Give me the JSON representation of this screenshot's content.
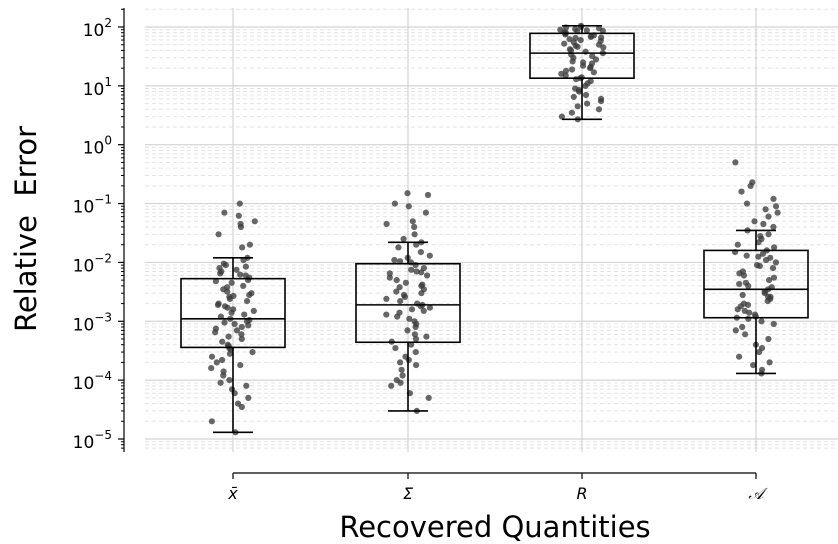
{
  "chart_data": {
    "type": "box",
    "xlabel": "Recovered Quantities",
    "ylabel": "Relative  Error",
    "yscale": "log",
    "ylim": [
      6e-06,
      200
    ],
    "grid": true,
    "categories": [
      "x̄",
      "Σ",
      "R",
      "𝒜"
    ],
    "y_ticks": [
      {
        "base": "10",
        "exp": "−5",
        "value": 1e-05
      },
      {
        "base": "10",
        "exp": "−4",
        "value": 0.0001
      },
      {
        "base": "10",
        "exp": "−3",
        "value": 0.001
      },
      {
        "base": "10",
        "exp": "−2",
        "value": 0.01
      },
      {
        "base": "10",
        "exp": "−1",
        "value": 0.1
      },
      {
        "base": "10",
        "exp": "0",
        "value": 1
      },
      {
        "base": "10",
        "exp": "1",
        "value": 10
      },
      {
        "base": "10",
        "exp": "2",
        "value": 100
      }
    ],
    "boxes": [
      {
        "category": "x̄",
        "whisker_low": 1.3e-05,
        "q1": 0.00036,
        "median": 0.0011,
        "q3": 0.0053,
        "whisker_high": 0.012
      },
      {
        "category": "Σ",
        "whisker_low": 3e-05,
        "q1": 0.00044,
        "median": 0.0019,
        "q3": 0.0095,
        "whisker_high": 0.022
      },
      {
        "category": "R",
        "whisker_low": 2.7,
        "q1": 13.5,
        "median": 36,
        "q3": 78,
        "whisker_high": 105
      },
      {
        "category": "𝒜",
        "whisker_low": 0.00013,
        "q1": 0.00115,
        "median": 0.0035,
        "q3": 0.016,
        "whisker_high": 0.035
      }
    ],
    "points": [
      {
        "category": "x̄",
        "values": [
          0.1,
          0.07,
          0.062,
          0.05,
          0.04,
          0.045,
          0.03,
          0.02,
          0.018,
          0.012,
          0.011,
          0.009,
          0.0085,
          0.008,
          0.0075,
          0.007,
          0.0065,
          0.006,
          0.0055,
          0.005,
          0.0048,
          0.0045,
          0.004,
          0.0038,
          0.0035,
          0.0032,
          0.003,
          0.0028,
          0.0026,
          0.0024,
          0.0022,
          0.002,
          0.0019,
          0.0018,
          0.0017,
          0.0016,
          0.0015,
          0.0014,
          0.0013,
          0.0012,
          0.0011,
          0.00105,
          0.001,
          0.00095,
          0.0009,
          0.00085,
          0.0008,
          0.00075,
          0.0007,
          0.00065,
          0.0006,
          0.00055,
          0.0005,
          0.00045,
          0.0004,
          0.00038,
          0.00035,
          0.0003,
          0.00028,
          0.00025,
          0.00022,
          0.0002,
          0.00018,
          0.00016,
          0.00014,
          0.00012,
          0.0001,
          9e-05,
          8e-05,
          7e-05,
          6e-05,
          5e-05,
          4e-05,
          3.5e-05,
          2e-05,
          1.3e-05,
          0.00033,
          0.0027,
          0.0062,
          0.0095
        ]
      },
      {
        "category": "Σ",
        "values": [
          0.15,
          0.14,
          0.1,
          0.09,
          0.07,
          0.05,
          0.045,
          0.04,
          0.03,
          0.025,
          0.022,
          0.02,
          0.018,
          0.015,
          0.013,
          0.012,
          0.011,
          0.01,
          0.009,
          0.008,
          0.0075,
          0.007,
          0.0065,
          0.006,
          0.0055,
          0.005,
          0.0045,
          0.004,
          0.0038,
          0.0035,
          0.0032,
          0.003,
          0.0028,
          0.0026,
          0.0024,
          0.0022,
          0.002,
          0.0019,
          0.0018,
          0.0017,
          0.0016,
          0.0015,
          0.0014,
          0.0013,
          0.0012,
          0.0011,
          0.001,
          0.0009,
          0.0008,
          0.0007,
          0.0006,
          0.00055,
          0.0005,
          0.00045,
          0.0004,
          0.00035,
          0.0003,
          0.00025,
          0.0002,
          0.00018,
          0.00015,
          0.00012,
          0.0001,
          9e-05,
          8e-05,
          6e-05,
          5e-05,
          3e-05,
          0.00022,
          0.0042,
          0.0068,
          0.0105
        ]
      },
      {
        "category": "R",
        "values": [
          105,
          100,
          98,
          95,
          92,
          90,
          88,
          85,
          82,
          80,
          78,
          75,
          72,
          70,
          68,
          65,
          62,
          60,
          58,
          55,
          52,
          50,
          48,
          45,
          42,
          40,
          38,
          36,
          34,
          32,
          30,
          28,
          26,
          25,
          24,
          22,
          21,
          20,
          19,
          18,
          17,
          16,
          15,
          14,
          13.5,
          13,
          12,
          11,
          10,
          9,
          8.5,
          8,
          7,
          6.5,
          6,
          5.5,
          5,
          4.5,
          4,
          3.5,
          3,
          2.7,
          46,
          66,
          86
        ]
      },
      {
        "category": "𝒜",
        "values": [
          0.5,
          0.23,
          0.2,
          0.16,
          0.12,
          0.1,
          0.09,
          0.08,
          0.07,
          0.06,
          0.05,
          0.045,
          0.04,
          0.035,
          0.03,
          0.028,
          0.025,
          0.022,
          0.02,
          0.018,
          0.016,
          0.015,
          0.014,
          0.013,
          0.012,
          0.011,
          0.01,
          0.009,
          0.008,
          0.007,
          0.0065,
          0.006,
          0.0055,
          0.005,
          0.0045,
          0.004,
          0.0038,
          0.0035,
          0.0032,
          0.003,
          0.0028,
          0.0026,
          0.0024,
          0.0022,
          0.002,
          0.0018,
          0.0016,
          0.0015,
          0.0014,
          0.0013,
          0.0012,
          0.00115,
          0.0011,
          0.001,
          0.0009,
          0.0008,
          0.0007,
          0.0006,
          0.0005,
          0.0004,
          0.00035,
          0.0003,
          0.00025,
          0.0002,
          0.00018,
          0.00015,
          0.00013,
          0.0019,
          0.0043,
          0.0087,
          0.0125,
          0.0026
        ]
      }
    ]
  }
}
